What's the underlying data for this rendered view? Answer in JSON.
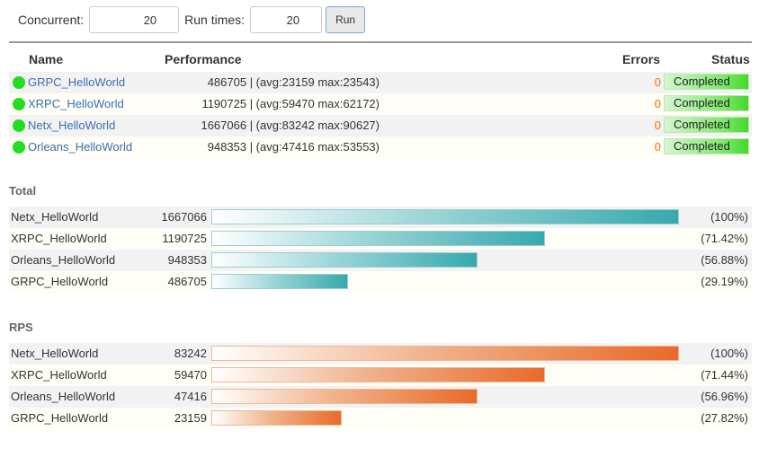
{
  "toolbar": {
    "concurrent_label": "Concurrent:",
    "concurrent_value": "20",
    "runtimes_label": "Run times:",
    "runtimes_value": "20",
    "run_label": "Run"
  },
  "table": {
    "headers": {
      "name": "Name",
      "performance": "Performance",
      "errors": "Errors",
      "status": "Status"
    },
    "rows": [
      {
        "name": "GRPC_HelloWorld",
        "performance": "486705 | (avg:23159 max:23543)",
        "errors": "0",
        "status": "Completed"
      },
      {
        "name": "XRPC_HelloWorld",
        "performance": "1190725 | (avg:59470 max:62172)",
        "errors": "0",
        "status": "Completed"
      },
      {
        "name": "Netx_HelloWorld",
        "performance": "1667066 | (avg:83242 max:90627)",
        "errors": "0",
        "status": "Completed"
      },
      {
        "name": "Orleans_HelloWorld",
        "performance": "948353 | (avg:47416 max:53553)",
        "errors": "0",
        "status": "Completed"
      }
    ]
  },
  "total": {
    "title": "Total",
    "color": "#37a9ad",
    "items": [
      {
        "name": "Netx_HelloWorld",
        "value": "1667066",
        "percent_label": "(100%)",
        "fraction": 1.0
      },
      {
        "name": "XRPC_HelloWorld",
        "value": "1190725",
        "percent_label": "(71.42%)",
        "fraction": 0.7142
      },
      {
        "name": "Orleans_HelloWorld",
        "value": "948353",
        "percent_label": "(56.88%)",
        "fraction": 0.5688
      },
      {
        "name": "GRPC_HelloWorld",
        "value": "486705",
        "percent_label": "(29.19%)",
        "fraction": 0.2919
      }
    ]
  },
  "rps": {
    "title": "RPS",
    "color": "#e96a28",
    "items": [
      {
        "name": "Netx_HelloWorld",
        "value": "83242",
        "percent_label": "(100%)",
        "fraction": 1.0
      },
      {
        "name": "XRPC_HelloWorld",
        "value": "59470",
        "percent_label": "(71.44%)",
        "fraction": 0.7144
      },
      {
        "name": "Orleans_HelloWorld",
        "value": "47416",
        "percent_label": "(56.96%)",
        "fraction": 0.5696
      },
      {
        "name": "GRPC_HelloWorld",
        "value": "23159",
        "percent_label": "(27.82%)",
        "fraction": 0.2782
      }
    ]
  },
  "colors": {
    "status_ok": "#22dd22",
    "link": "#3a6fb0",
    "error": "#ff6a00"
  }
}
